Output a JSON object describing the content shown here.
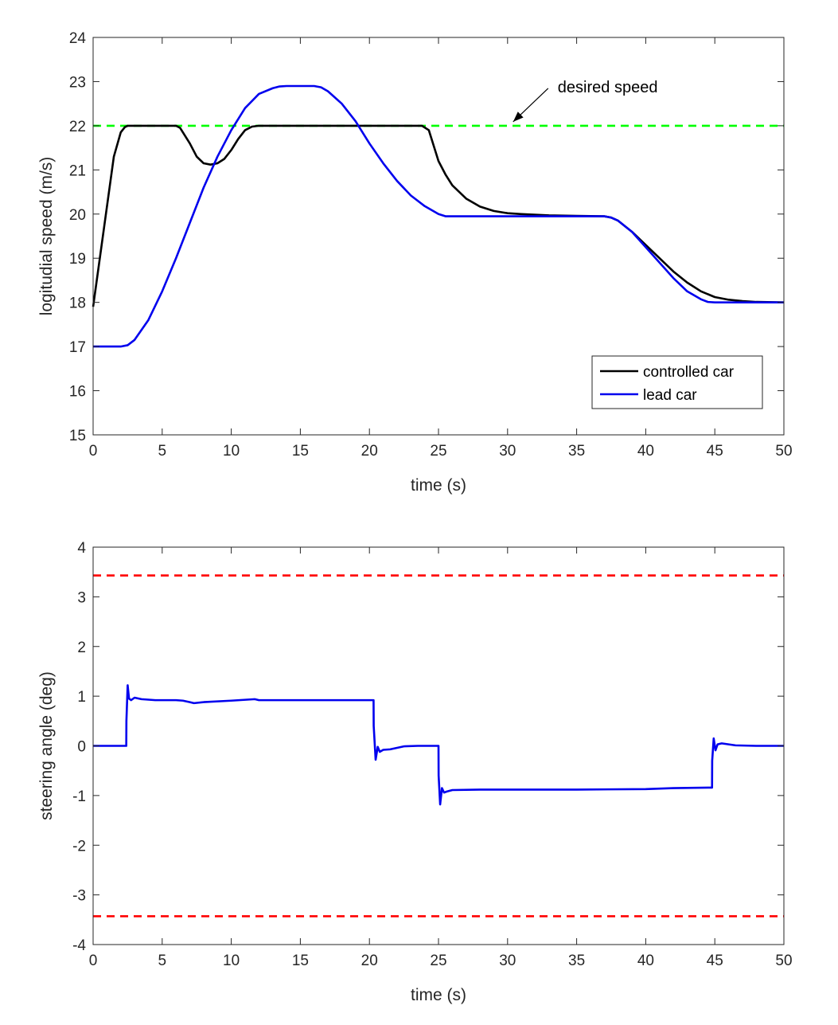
{
  "chart_data": [
    {
      "type": "line",
      "xlabel": "time (s)",
      "ylabel": "logitudial speed (m/s)",
      "xlim": [
        0,
        50
      ],
      "ylim": [
        15,
        24
      ],
      "xticks": [
        "0",
        "5",
        "10",
        "15",
        "20",
        "25",
        "30",
        "35",
        "40",
        "45",
        "50"
      ],
      "yticks": [
        "15",
        "16",
        "17",
        "18",
        "19",
        "20",
        "21",
        "22",
        "23",
        "24"
      ],
      "grid": false,
      "legend": {
        "placement": "bottom-right",
        "entries": [
          "controlled car",
          "lead car"
        ]
      },
      "annotations": [
        {
          "text": "desired speed",
          "points_to": [
            30,
            22
          ]
        }
      ],
      "reference_lines": [
        {
          "y": 22,
          "color": "#00ff00",
          "style": "dashed"
        }
      ],
      "series": [
        {
          "name": "controlled car",
          "color": "#000000",
          "x": [
            0,
            1.5,
            2,
            2.3,
            2.5,
            3,
            6,
            6.3,
            7,
            7.5,
            8,
            8.5,
            9,
            9.5,
            10,
            10.5,
            11,
            11.5,
            12,
            12.5,
            13,
            20,
            23.8,
            24.3,
            24.7,
            25,
            25.5,
            26,
            27,
            28,
            29,
            30,
            31,
            33,
            35,
            37,
            37.5,
            38,
            39,
            40,
            41,
            42,
            43,
            44,
            45,
            46,
            47,
            48,
            50
          ],
          "y": [
            17.9,
            21.3,
            21.85,
            21.97,
            22.0,
            22.0,
            22.0,
            21.95,
            21.6,
            21.3,
            21.15,
            21.12,
            21.15,
            21.25,
            21.45,
            21.7,
            21.9,
            21.98,
            22.0,
            22.0,
            22.0,
            22.0,
            22.0,
            21.9,
            21.5,
            21.2,
            20.9,
            20.65,
            20.35,
            20.17,
            20.07,
            20.02,
            20.0,
            19.97,
            19.96,
            19.95,
            19.92,
            19.85,
            19.6,
            19.3,
            19.0,
            18.7,
            18.45,
            18.25,
            18.12,
            18.06,
            18.03,
            18.01,
            18.0
          ]
        },
        {
          "name": "lead car",
          "color": "#0000ee",
          "x": [
            0,
            2.0,
            2.5,
            3,
            4,
            5,
            6,
            7,
            8,
            9,
            10,
            11,
            12,
            13,
            13.5,
            14,
            15,
            16,
            16.5,
            17,
            18,
            19,
            20,
            21,
            22,
            23,
            24,
            25,
            25.5,
            26,
            37,
            37.5,
            38,
            39,
            40,
            41,
            42,
            43,
            44,
            44.5,
            45,
            50
          ],
          "y": [
            17.0,
            17.0,
            17.03,
            17.15,
            17.6,
            18.25,
            19.0,
            19.8,
            20.6,
            21.3,
            21.9,
            22.4,
            22.72,
            22.85,
            22.89,
            22.9,
            22.9,
            22.9,
            22.87,
            22.78,
            22.5,
            22.1,
            21.6,
            21.15,
            20.75,
            20.42,
            20.18,
            20.0,
            19.95,
            19.95,
            19.95,
            19.92,
            19.85,
            19.6,
            19.25,
            18.9,
            18.55,
            18.25,
            18.07,
            18.01,
            18.0,
            18.0
          ]
        }
      ]
    },
    {
      "type": "line",
      "xlabel": "time (s)",
      "ylabel": "steering angle (deg)",
      "xlim": [
        0,
        50
      ],
      "ylim": [
        -4,
        4
      ],
      "xticks": [
        "0",
        "5",
        "10",
        "15",
        "20",
        "25",
        "30",
        "35",
        "40",
        "45",
        "50"
      ],
      "yticks": [
        "-4",
        "-3",
        "-2",
        "-1",
        "0",
        "1",
        "2",
        "3",
        "4"
      ],
      "grid": false,
      "reference_lines": [
        {
          "y": 3.43,
          "color": "#ff0000",
          "style": "dashed"
        },
        {
          "y": -3.43,
          "color": "#ff0000",
          "style": "dashed"
        }
      ],
      "series": [
        {
          "color": "#0000ee",
          "x": [
            0,
            2.4,
            2.41,
            2.5,
            2.6,
            2.75,
            3.0,
            3.5,
            4.5,
            6.0,
            6.5,
            7.0,
            7.3,
            8.0,
            10,
            11.7,
            12.0,
            20.3,
            20.31,
            20.45,
            20.6,
            20.75,
            21.0,
            21.5,
            22.5,
            23.5,
            25.0,
            25.01,
            25.12,
            25.25,
            25.4,
            25.6,
            26.0,
            28.0,
            35.0,
            40.0,
            42.0,
            44.8,
            44.81,
            44.92,
            45.05,
            45.2,
            45.5,
            46.5,
            48.0,
            50.0
          ],
          "y": [
            0,
            0,
            0.5,
            1.22,
            0.95,
            0.92,
            0.97,
            0.94,
            0.92,
            0.92,
            0.91,
            0.88,
            0.86,
            0.88,
            0.91,
            0.94,
            0.92,
            0.92,
            0.4,
            -0.28,
            -0.02,
            -0.12,
            -0.08,
            -0.07,
            -0.01,
            0.0,
            0.0,
            -0.6,
            -1.18,
            -0.85,
            -0.94,
            -0.92,
            -0.89,
            -0.88,
            -0.88,
            -0.87,
            -0.85,
            -0.84,
            -0.3,
            0.15,
            -0.09,
            0.03,
            0.05,
            0.01,
            0.0,
            0.0
          ]
        }
      ]
    }
  ]
}
